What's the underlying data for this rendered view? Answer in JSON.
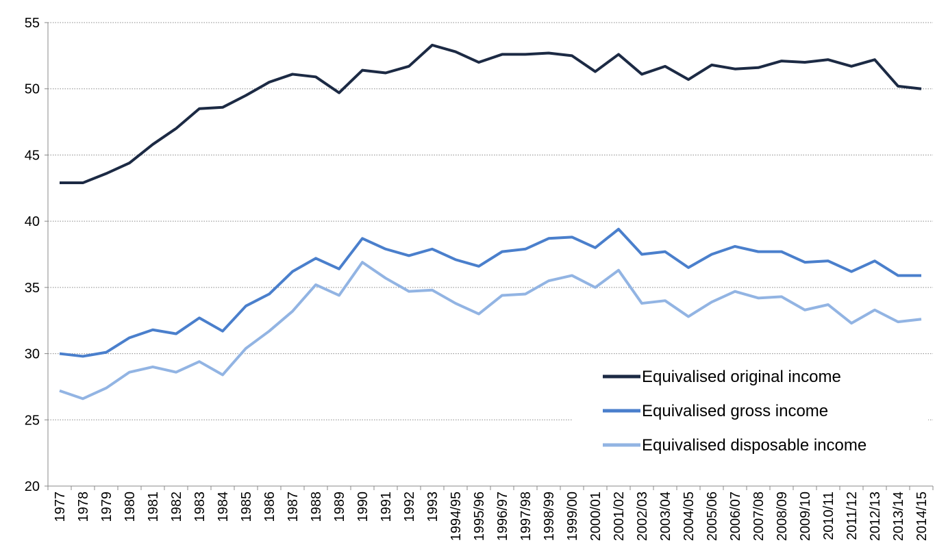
{
  "chart_data": {
    "type": "line",
    "categories": [
      "1977",
      "1978",
      "1979",
      "1980",
      "1981",
      "1982",
      "1983",
      "1984",
      "1985",
      "1986",
      "1987",
      "1988",
      "1989",
      "1990",
      "1991",
      "1992",
      "1993",
      "1994/95",
      "1995/96",
      "1996/97",
      "1997/98",
      "1998/99",
      "1999/00",
      "2000/01",
      "2001/02",
      "2002/03",
      "2003/04",
      "2004/05",
      "2005/06",
      "2006/07",
      "2007/08",
      "2008/09",
      "2009/10",
      "2010/11",
      "2011/12",
      "2012/13",
      "2013/14",
      "2014/15"
    ],
    "series": [
      {
        "name": "Equivalised original income",
        "color": "#1c2a44",
        "values": [
          42.9,
          42.9,
          43.6,
          44.4,
          45.8,
          47.0,
          48.5,
          48.6,
          49.5,
          50.5,
          51.1,
          50.9,
          49.7,
          51.4,
          51.2,
          51.7,
          53.3,
          52.8,
          52.0,
          52.6,
          52.6,
          52.7,
          52.5,
          51.3,
          52.6,
          51.1,
          51.7,
          50.7,
          51.8,
          51.5,
          51.6,
          52.1,
          52.0,
          52.2,
          51.7,
          52.2,
          50.2,
          50.0
        ]
      },
      {
        "name": "Equivalised gross income",
        "color": "#4a7fcc",
        "values": [
          30.0,
          29.8,
          30.1,
          31.2,
          31.8,
          31.5,
          32.7,
          31.7,
          33.6,
          34.5,
          36.2,
          37.2,
          36.4,
          38.7,
          37.9,
          37.4,
          37.9,
          37.1,
          36.6,
          37.7,
          37.9,
          38.7,
          38.8,
          38.0,
          39.4,
          37.5,
          37.7,
          36.5,
          37.5,
          38.1,
          37.7,
          37.7,
          36.9,
          37.0,
          36.2,
          37.0,
          35.9,
          35.9
        ]
      },
      {
        "name": "Equivalised disposable income",
        "color": "#92b4e3",
        "values": [
          27.2,
          26.6,
          27.4,
          28.6,
          29.0,
          28.6,
          29.4,
          28.4,
          30.4,
          31.7,
          33.2,
          35.2,
          34.4,
          36.9,
          35.7,
          34.7,
          34.8,
          33.8,
          33.0,
          34.4,
          34.5,
          35.5,
          35.9,
          35.0,
          36.3,
          33.8,
          34.0,
          32.8,
          33.9,
          34.7,
          34.2,
          34.3,
          33.3,
          33.7,
          32.3,
          33.3,
          32.4,
          32.6
        ]
      }
    ],
    "ylim": [
      20,
      55
    ],
    "yticks": [
      20,
      25,
      30,
      35,
      40,
      45,
      50,
      55
    ],
    "grid": true,
    "legend": "lower-right"
  }
}
